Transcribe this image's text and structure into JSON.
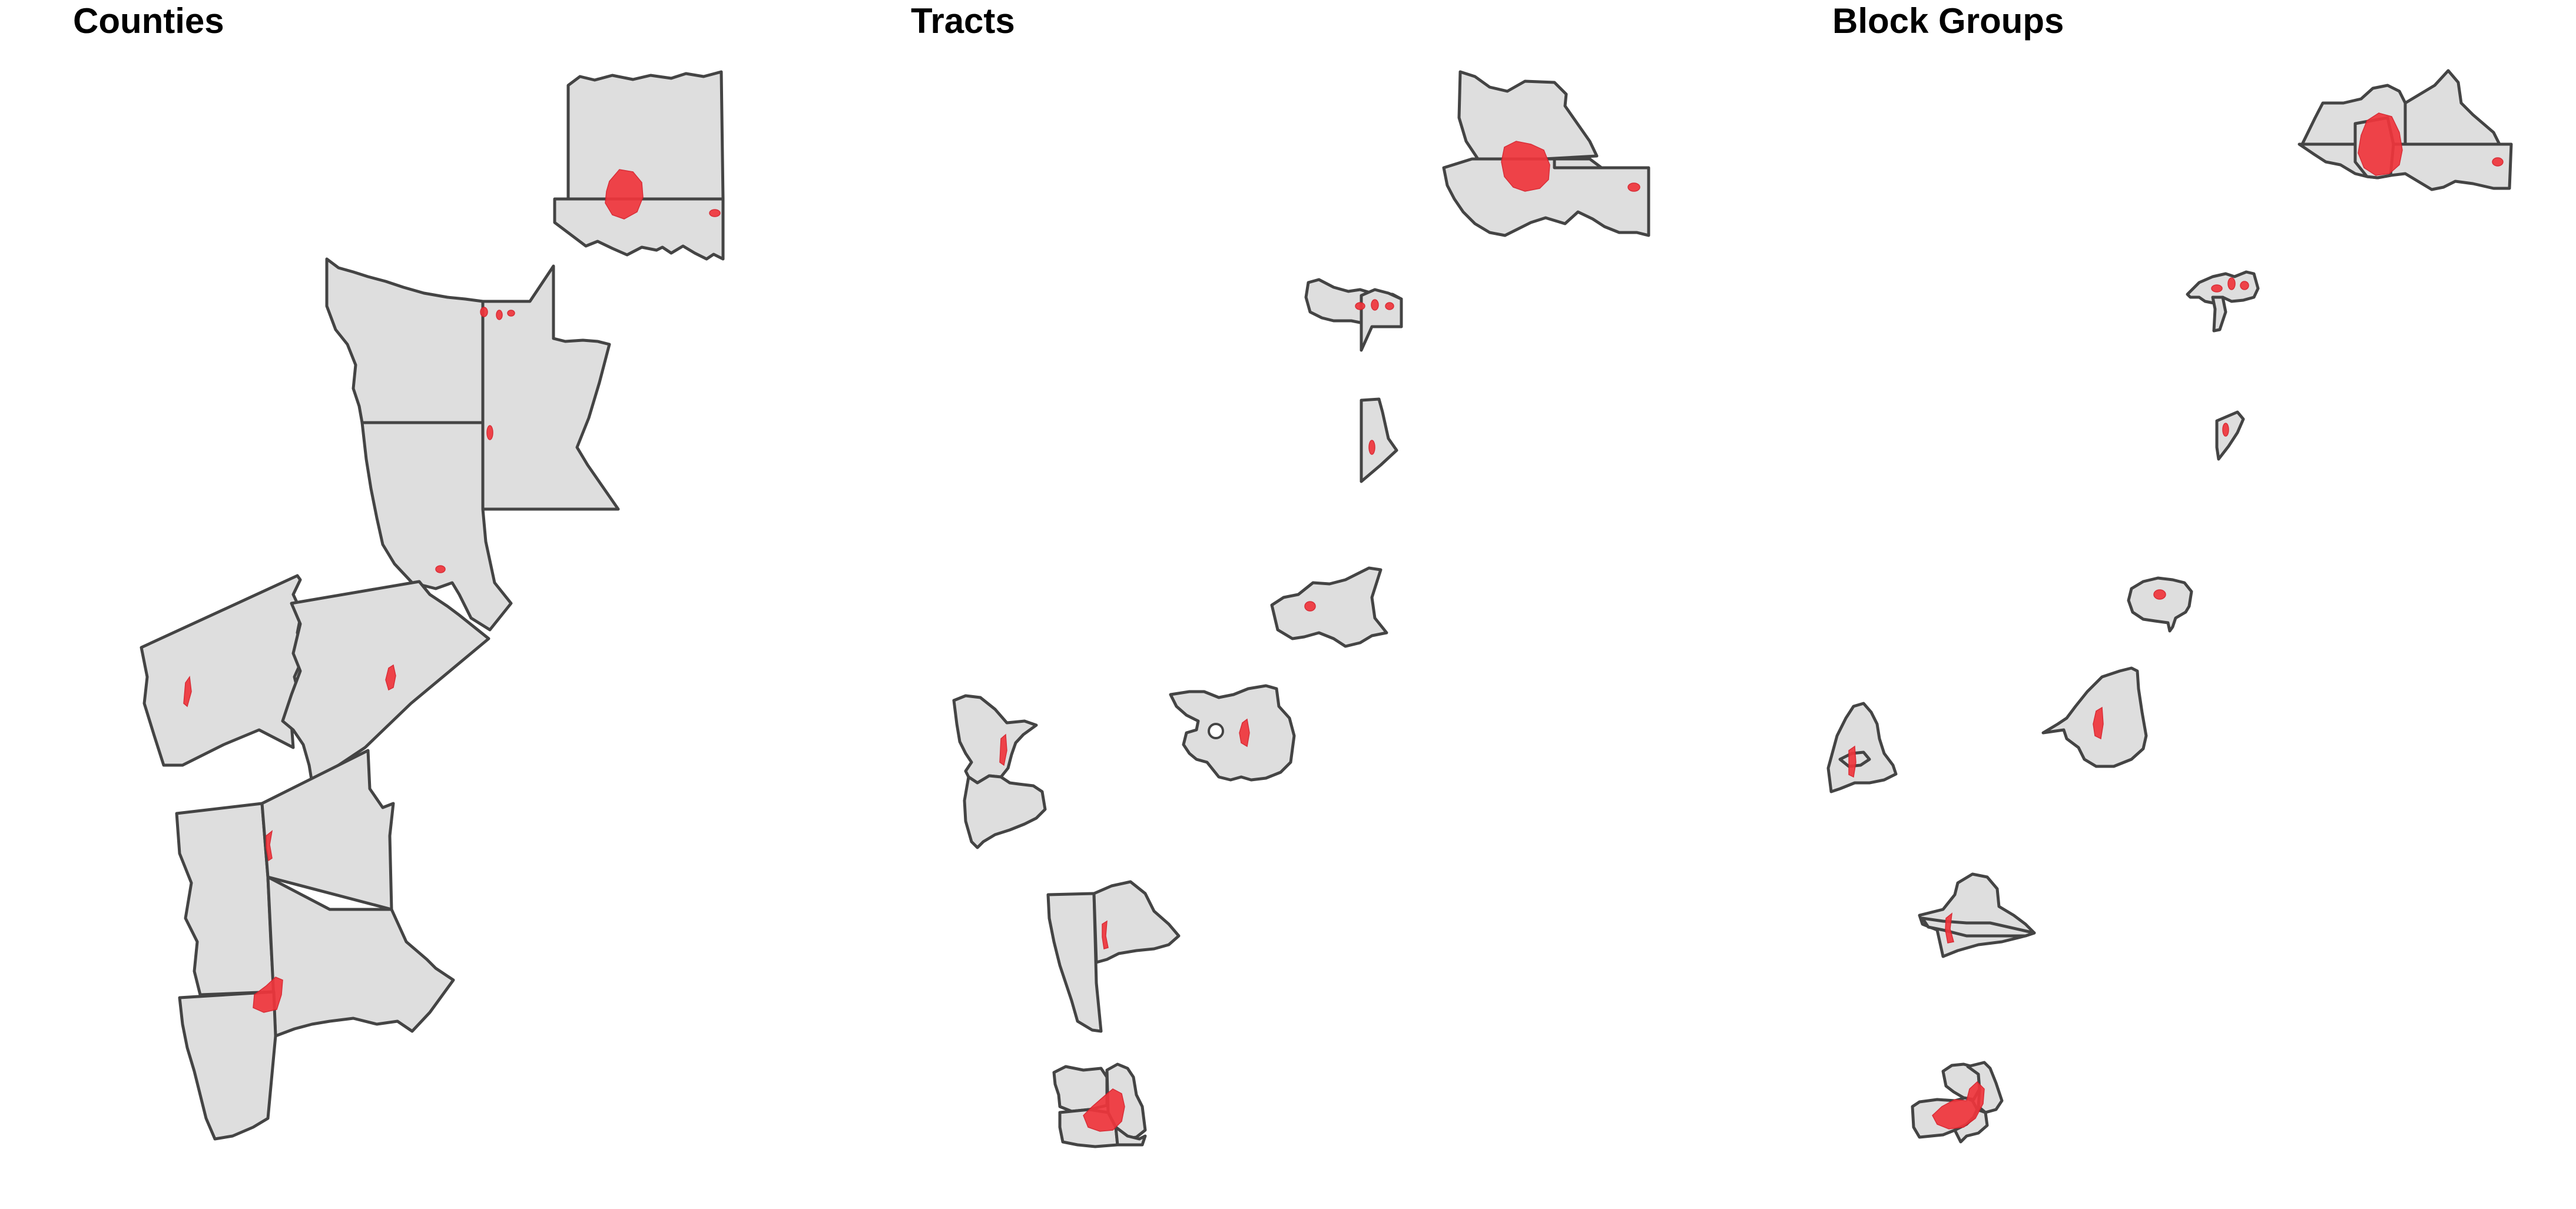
{
  "panels": [
    {
      "id": "counties",
      "title": "Counties"
    },
    {
      "id": "tracts",
      "title": "Tracts"
    },
    {
      "id": "block_groups",
      "title": "Block Groups"
    }
  ],
  "colors": {
    "polygon_fill": "#dedede",
    "polygon_stroke": "#444444",
    "highlight": "#f0353c",
    "background": "#ffffff"
  }
}
